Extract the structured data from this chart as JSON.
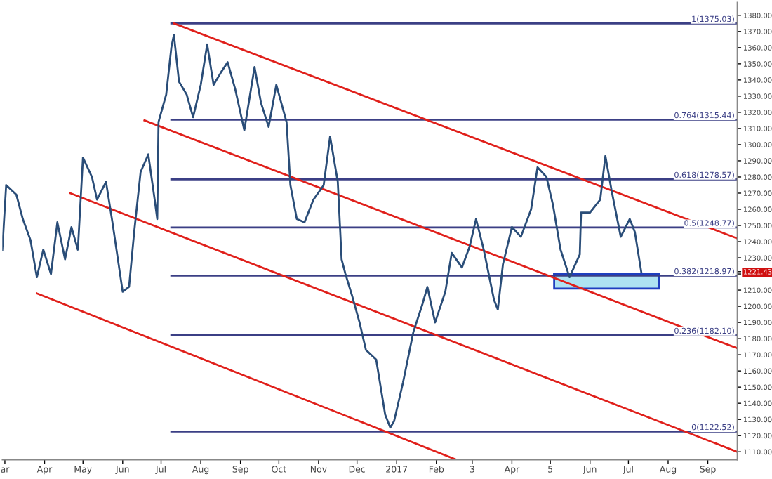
{
  "chart_data": {
    "type": "line",
    "xlim": [
      "2016-02-28",
      "2017-09-24"
    ],
    "xticks": [
      {
        "value": "2016-03-01",
        "label": "ar"
      },
      {
        "value": "2016-04-01",
        "label": "Apr"
      },
      {
        "value": "2016-05-01",
        "label": "May"
      },
      {
        "value": "2016-06-01",
        "label": "Jun"
      },
      {
        "value": "2016-07-01",
        "label": "Jul"
      },
      {
        "value": "2016-08-01",
        "label": "Aug"
      },
      {
        "value": "2016-09-01",
        "label": "Sep"
      },
      {
        "value": "2016-10-01",
        "label": "Oct"
      },
      {
        "value": "2016-11-01",
        "label": "Nov"
      },
      {
        "value": "2016-12-01",
        "label": "Dec"
      },
      {
        "value": "2017-01-01",
        "label": "2017"
      },
      {
        "value": "2017-02-01",
        "label": "Feb"
      },
      {
        "value": "2017-03-01",
        "label": "3"
      },
      {
        "value": "2017-04-01",
        "label": "Apr"
      },
      {
        "value": "2017-05-01",
        "label": "5"
      },
      {
        "value": "2017-06-01",
        "label": "Jun"
      },
      {
        "value": "2017-07-01",
        "label": "Jul"
      },
      {
        "value": "2017-08-01",
        "label": "Aug"
      },
      {
        "value": "2017-09-01",
        "label": "Sep"
      }
    ],
    "ylim": [
      1105,
      1388
    ],
    "yticks": [
      {
        "value": 1110,
        "label": "1110.00"
      },
      {
        "value": 1120,
        "label": "1120.00"
      },
      {
        "value": 1130,
        "label": "1130.00"
      },
      {
        "value": 1140,
        "label": "1140.00"
      },
      {
        "value": 1150,
        "label": "1150.00"
      },
      {
        "value": 1160,
        "label": "1160.00"
      },
      {
        "value": 1170,
        "label": "1170.00"
      },
      {
        "value": 1180,
        "label": "1180.00"
      },
      {
        "value": 1190,
        "label": "1190.00"
      },
      {
        "value": 1200,
        "label": "1200.00"
      },
      {
        "value": 1210,
        "label": "1210.00"
      },
      {
        "value": 1220,
        "label": null
      },
      {
        "value": 1221.43,
        "label": "1221.43"
      },
      {
        "value": 1230,
        "label": "1230.00"
      },
      {
        "value": 1240,
        "label": "1240.00"
      },
      {
        "value": 1250,
        "label": "1250.00"
      },
      {
        "value": 1260,
        "label": "1260.00"
      },
      {
        "value": 1270,
        "label": "1270.00"
      },
      {
        "value": 1280,
        "label": "1280.00"
      },
      {
        "value": 1290,
        "label": "1290.00"
      },
      {
        "value": 1300,
        "label": "1300.00"
      },
      {
        "value": 1310,
        "label": "1310.00"
      },
      {
        "value": 1320,
        "label": "1320.00"
      },
      {
        "value": 1330,
        "label": "1330.00"
      },
      {
        "value": 1340,
        "label": "1340.00"
      },
      {
        "value": 1350,
        "label": "1350.00"
      },
      {
        "value": 1360,
        "label": "1360.00"
      },
      {
        "value": 1370,
        "label": "1370.00"
      },
      {
        "value": 1380,
        "label": "1380.00"
      }
    ],
    "grid": false,
    "legend": false,
    "series": [
      {
        "type": "line",
        "color": "#1f3fbf",
        "x": [
          "2017-05-04",
          "2017-07-25"
        ],
        "values": [
          1220,
          1220
        ],
        "upper": [
          1220,
          1220
        ],
        "lower": [
          1211,
          1211
        ]
      },
      {
        "type": "line",
        "name": "1(1375.03)",
        "color": "#3b3f85",
        "x": [
          "2016-07-09",
          "2017-09-24"
        ],
        "values": [
          1375.03,
          1375.03
        ]
      },
      {
        "type": "line",
        "name": "0.764(1315.44)",
        "color": "#3b3f85",
        "x": [
          "2016-07-09",
          "2017-09-24"
        ],
        "values": [
          1315.44,
          1315.44
        ]
      },
      {
        "type": "line",
        "name": "0.618(1278.57)",
        "color": "#3b3f85",
        "x": [
          "2016-07-09",
          "2017-09-24"
        ],
        "values": [
          1278.57,
          1278.57
        ]
      },
      {
        "type": "line",
        "name": "0.5(1248.77)",
        "color": "#3b3f85",
        "x": [
          "2016-07-09",
          "2017-09-24"
        ],
        "values": [
          1248.77,
          1248.77
        ]
      },
      {
        "type": "line",
        "name": "0.382(1218.97)",
        "color": "#3b3f85",
        "x": [
          "2016-07-09",
          "2017-09-24"
        ],
        "values": [
          1218.97,
          1218.97
        ]
      },
      {
        "type": "line",
        "name": "0.236(1182.10)",
        "color": "#3b3f85",
        "x": [
          "2016-07-09",
          "2017-09-24"
        ],
        "values": [
          1182.1,
          1182.1
        ]
      },
      {
        "type": "line",
        "name": "0(1122.52)",
        "color": "#3b3f85",
        "x": [
          "2016-07-09",
          "2017-09-24"
        ],
        "values": [
          1122.52,
          1122.52
        ]
      },
      {
        "type": "line",
        "color": "#e0201b",
        "x": [
          "2016-07-11",
          "2017-09-24"
        ],
        "values": [
          1375,
          1242
        ]
      },
      {
        "type": "line",
        "color": "#e0201b",
        "x": [
          "2016-06-18",
          "2017-09-24"
        ],
        "values": [
          1315,
          1174
        ]
      },
      {
        "type": "line",
        "color": "#e0201b",
        "x": [
          "2016-04-21",
          "2017-09-24"
        ],
        "values": [
          1270,
          1110
        ]
      },
      {
        "type": "line",
        "color": "#e0201b",
        "x": [
          "2016-03-26",
          "2017-02-17"
        ],
        "values": [
          1208,
          1105
        ]
      },
      {
        "color": "#2a4d78",
        "x": [
          "2016-02-28",
          "2016-03-02",
          "2016-03-10",
          "2016-03-15",
          "2016-03-21",
          "2016-03-26",
          "2016-03-31",
          "2016-04-06",
          "2016-04-11",
          "2016-04-17",
          "2016-04-22",
          "2016-04-27",
          "2016-05-01",
          "2016-05-08",
          "2016-05-12",
          "2016-05-19",
          "2016-05-24",
          "2016-06-01",
          "2016-06-06",
          "2016-06-10",
          "2016-06-15",
          "2016-06-21",
          "2016-06-26",
          "2016-06-28",
          "2016-06-29",
          "2016-07-05",
          "2016-07-09",
          "2016-07-11",
          "2016-07-15",
          "2016-07-21",
          "2016-07-26",
          "2016-08-01",
          "2016-08-06",
          "2016-08-11",
          "2016-08-17",
          "2016-08-22",
          "2016-08-28",
          "2016-09-04",
          "2016-09-12",
          "2016-09-17",
          "2016-09-23",
          "2016-09-29",
          "2016-10-07",
          "2016-10-10",
          "2016-10-15",
          "2016-10-21",
          "2016-10-28",
          "2016-11-05",
          "2016-11-10",
          "2016-11-16",
          "2016-11-19",
          "2016-11-22",
          "2016-11-27",
          "2016-12-03",
          "2016-12-08",
          "2016-12-16",
          "2016-12-23",
          "2016-12-27",
          "2016-12-30",
          "2017-01-06",
          "2017-01-14",
          "2017-01-21",
          "2017-01-25",
          "2017-01-31",
          "2017-02-08",
          "2017-02-13",
          "2017-02-21",
          "2017-02-27",
          "2017-03-04",
          "2017-03-10",
          "2017-03-18",
          "2017-03-21",
          "2017-03-25",
          "2017-04-01",
          "2017-04-08",
          "2017-04-16",
          "2017-04-21",
          "2017-04-28",
          "2017-05-03",
          "2017-05-09",
          "2017-05-16",
          "2017-05-24",
          "2017-05-25",
          "2017-06-01",
          "2017-06-09",
          "2017-06-13",
          "2017-06-18",
          "2017-06-25",
          "2017-07-02",
          "2017-07-06",
          "2017-07-11"
        ],
        "values": [
          1235,
          1275,
          1269,
          1254,
          1241,
          1218,
          1235,
          1220,
          1252,
          1229,
          1249,
          1235,
          1292,
          1280,
          1266,
          1277,
          1252,
          1209,
          1212,
          1246,
          1283,
          1294,
          1266,
          1254,
          1314,
          1331,
          1360,
          1368,
          1339,
          1331,
          1317,
          1337,
          1362,
          1337,
          1345,
          1351,
          1334,
          1309,
          1348,
          1326,
          1311,
          1337,
          1314,
          1275,
          1254,
          1252,
          1266,
          1275,
          1305,
          1277,
          1229,
          1220,
          1207,
          1190,
          1173,
          1167,
          1133,
          1125,
          1129,
          1153,
          1184,
          1201,
          1212,
          1190,
          1209,
          1233,
          1224,
          1237,
          1254,
          1235,
          1204,
          1198,
          1226,
          1249,
          1243,
          1260,
          1286,
          1280,
          1263,
          1235,
          1218,
          1232,
          1258,
          1258,
          1266,
          1293,
          1271,
          1243,
          1254,
          1246,
          1221.43
        ]
      }
    ]
  }
}
